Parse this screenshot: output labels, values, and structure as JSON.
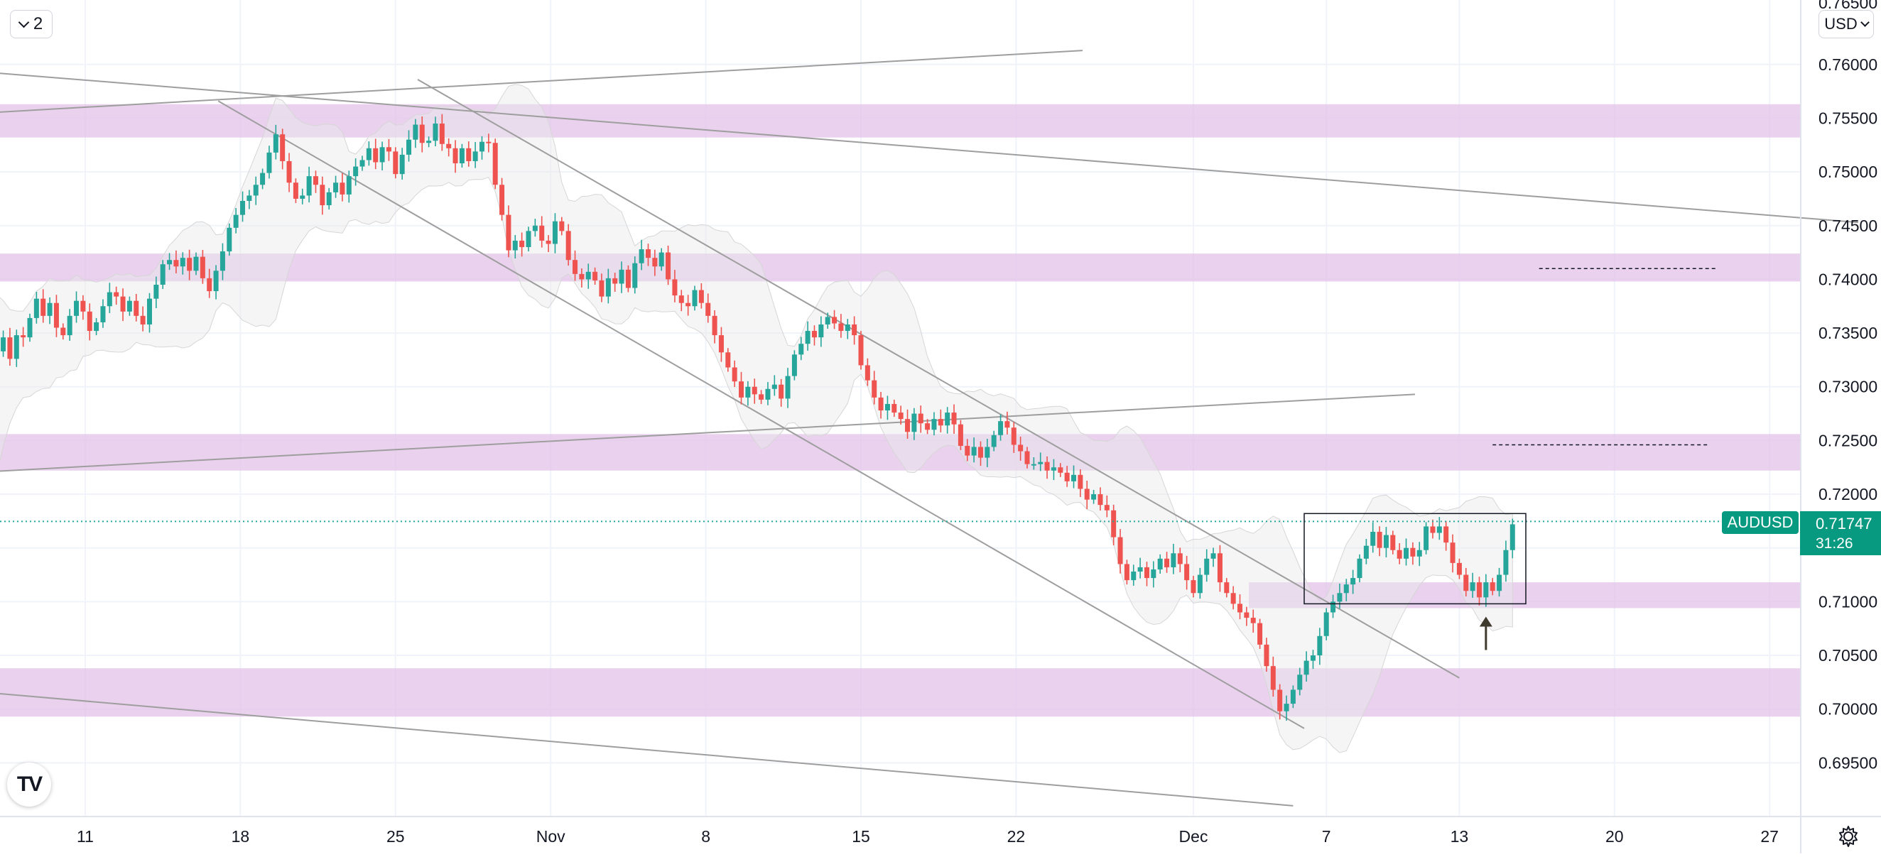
{
  "toolbar": {
    "collapse_label": "2",
    "currency_label": "USD"
  },
  "price_tag": {
    "symbol": "AUDUSD",
    "price": "0.71747",
    "countdown": "31:26"
  },
  "colors": {
    "up": "#26a69a",
    "down": "#ef5350",
    "zone": "#e1bee7",
    "price_tag": "#089981",
    "grid": "#f0f3fa",
    "trendline": "#9e9e9e"
  },
  "icons": {
    "logo": "tradingview-logo-icon",
    "settings": "gear-icon",
    "arrow": "arrow-up-icon"
  },
  "logo_text": "TV",
  "chart_data": {
    "type": "candlestick",
    "symbol": "AUDUSD",
    "ylim": [
      0.69,
      0.766
    ],
    "y_ticks": [
      "0.76000",
      "0.75500",
      "0.75000",
      "0.74500",
      "0.74000",
      "0.73500",
      "0.73000",
      "0.72500",
      "0.72000",
      "0.71000",
      "0.70500",
      "0.70000",
      "0.69500"
    ],
    "y_partial_tick": "0.76500",
    "x_ticks": [
      {
        "label": "11",
        "day": 11
      },
      {
        "label": "18",
        "day": 18
      },
      {
        "label": "25",
        "day": 25
      },
      {
        "label": "Nov",
        "day": 32
      },
      {
        "label": "8",
        "day": 39
      },
      {
        "label": "15",
        "day": 46
      },
      {
        "label": "22",
        "day": 53
      },
      {
        "label": "Dec",
        "day": 61
      },
      {
        "label": "7",
        "day": 67
      },
      {
        "label": "13",
        "day": 73
      },
      {
        "label": "20",
        "day": 80
      },
      {
        "label": "27",
        "day": 87
      }
    ],
    "grid": true,
    "current_price": 0.71747,
    "zones": [
      {
        "from": 0.7532,
        "to": 0.7563
      },
      {
        "from": 0.7398,
        "to": 0.7424
      },
      {
        "from": 0.7222,
        "to": 0.7256
      },
      {
        "from": 0.7094,
        "to": 0.7118,
        "start_day": 63.5
      },
      {
        "from": 0.6993,
        "to": 0.7038
      }
    ],
    "trendlines": [
      {
        "p1": [
          4,
          0.7552
        ],
        "p2": [
          56,
          0.7613
        ]
      },
      {
        "p1": [
          4,
          0.7597
        ],
        "p2": [
          91,
          0.7453
        ]
      },
      {
        "p1": [
          4,
          0.7218
        ],
        "p2": [
          71,
          0.7293
        ]
      },
      {
        "p1": [
          4,
          0.702
        ],
        "p2": [
          65.5,
          0.691
        ]
      },
      {
        "p1": [
          17,
          0.7566
        ],
        "p2": [
          66,
          0.6982
        ]
      },
      {
        "p1": [
          26,
          0.7586
        ],
        "p2": [
          73,
          0.7029
        ]
      }
    ],
    "dashed_levels": [
      {
        "price": 0.741,
        "from_day": 76.6,
        "to_day": 84.6
      },
      {
        "price": 0.7246,
        "from_day": 74.5,
        "to_day": 84.3
      }
    ],
    "consolidation_box": {
      "from_day": 66,
      "to_day": 76,
      "low": 0.7098,
      "high": 0.7182
    },
    "arrow": {
      "day": 74.2,
      "price_base": 0.7055,
      "price_tip": 0.7086
    },
    "series": [
      {
        "name": "AUDUSD",
        "points": [
          [
            4.0,
            0.7226
          ],
          [
            4.3,
            0.7256
          ],
          [
            4.6,
            0.7276
          ],
          [
            4.9,
            0.7295
          ],
          [
            5.2,
            0.7312
          ],
          [
            5.5,
            0.7301
          ],
          [
            5.8,
            0.7326
          ],
          [
            6.1,
            0.7333
          ],
          [
            6.4,
            0.7318
          ],
          [
            6.7,
            0.7343
          ],
          [
            7.0,
            0.7333
          ],
          [
            7.3,
            0.7346
          ],
          [
            7.6,
            0.7326
          ],
          [
            7.9,
            0.7348
          ],
          [
            8.2,
            0.7346
          ],
          [
            8.5,
            0.7364
          ],
          [
            8.8,
            0.7382
          ],
          [
            9.1,
            0.7366
          ],
          [
            9.4,
            0.7378
          ],
          [
            9.7,
            0.7355
          ],
          [
            10.0,
            0.7348
          ],
          [
            10.3,
            0.7366
          ],
          [
            10.6,
            0.738
          ],
          [
            10.9,
            0.737
          ],
          [
            11.2,
            0.7352
          ],
          [
            11.5,
            0.736
          ],
          [
            11.8,
            0.7375
          ],
          [
            12.1,
            0.7388
          ],
          [
            12.4,
            0.7384
          ],
          [
            12.7,
            0.737
          ],
          [
            13.0,
            0.738
          ],
          [
            13.3,
            0.7366
          ],
          [
            13.6,
            0.7358
          ],
          [
            13.9,
            0.7382
          ],
          [
            14.2,
            0.7395
          ],
          [
            14.5,
            0.7414
          ],
          [
            14.8,
            0.7418
          ],
          [
            15.1,
            0.7412
          ],
          [
            15.4,
            0.742
          ],
          [
            15.7,
            0.7408
          ],
          [
            16.0,
            0.7421
          ],
          [
            16.3,
            0.7401
          ],
          [
            16.6,
            0.7389
          ],
          [
            16.9,
            0.7408
          ],
          [
            17.2,
            0.7426
          ],
          [
            17.5,
            0.7448
          ],
          [
            17.8,
            0.746
          ],
          [
            18.1,
            0.7473
          ],
          [
            18.4,
            0.7478
          ],
          [
            18.7,
            0.7488
          ],
          [
            19.0,
            0.7499
          ],
          [
            19.3,
            0.7518
          ],
          [
            19.6,
            0.7535
          ],
          [
            19.9,
            0.751
          ],
          [
            20.2,
            0.749
          ],
          [
            20.5,
            0.7475
          ],
          [
            20.8,
            0.7478
          ],
          [
            21.1,
            0.7496
          ],
          [
            21.4,
            0.7488
          ],
          [
            21.7,
            0.7469
          ],
          [
            22.0,
            0.7481
          ],
          [
            22.3,
            0.749
          ],
          [
            22.6,
            0.7479
          ],
          [
            22.9,
            0.7496
          ],
          [
            23.2,
            0.7505
          ],
          [
            23.5,
            0.7511
          ],
          [
            23.8,
            0.7522
          ],
          [
            24.1,
            0.7509
          ],
          [
            24.4,
            0.7523
          ],
          [
            24.7,
            0.7519
          ],
          [
            25.0,
            0.7498
          ],
          [
            25.3,
            0.7516
          ],
          [
            25.6,
            0.753
          ],
          [
            25.9,
            0.7544
          ],
          [
            26.2,
            0.7527
          ],
          [
            26.5,
            0.7529
          ],
          [
            26.8,
            0.7545
          ],
          [
            27.1,
            0.7526
          ],
          [
            27.4,
            0.7522
          ],
          [
            27.7,
            0.7508
          ],
          [
            28.0,
            0.7522
          ],
          [
            28.3,
            0.751
          ],
          [
            28.6,
            0.7519
          ],
          [
            28.9,
            0.7528
          ],
          [
            29.2,
            0.7527
          ],
          [
            29.5,
            0.7488
          ],
          [
            29.8,
            0.746
          ],
          [
            30.1,
            0.7427
          ],
          [
            30.4,
            0.7436
          ],
          [
            30.7,
            0.743
          ],
          [
            31.0,
            0.7445
          ],
          [
            31.3,
            0.745
          ],
          [
            31.6,
            0.7436
          ],
          [
            31.9,
            0.7433
          ],
          [
            32.2,
            0.7454
          ],
          [
            32.5,
            0.7445
          ],
          [
            32.8,
            0.7418
          ],
          [
            33.1,
            0.7405
          ],
          [
            33.4,
            0.74
          ],
          [
            33.7,
            0.7407
          ],
          [
            34.0,
            0.7399
          ],
          [
            34.3,
            0.7384
          ],
          [
            34.6,
            0.7401
          ],
          [
            34.9,
            0.7396
          ],
          [
            35.2,
            0.7409
          ],
          [
            35.5,
            0.7392
          ],
          [
            35.8,
            0.7415
          ],
          [
            36.1,
            0.7428
          ],
          [
            36.4,
            0.742
          ],
          [
            36.7,
            0.7412
          ],
          [
            37.0,
            0.7425
          ],
          [
            37.3,
            0.74
          ],
          [
            37.6,
            0.7385
          ],
          [
            37.9,
            0.7378
          ],
          [
            38.2,
            0.7375
          ],
          [
            38.5,
            0.739
          ],
          [
            38.8,
            0.7378
          ],
          [
            39.1,
            0.7366
          ],
          [
            39.4,
            0.7348
          ],
          [
            39.7,
            0.7332
          ],
          [
            40.0,
            0.7318
          ],
          [
            40.3,
            0.7305
          ],
          [
            40.6,
            0.729
          ],
          [
            40.9,
            0.73
          ],
          [
            41.2,
            0.7293
          ],
          [
            41.5,
            0.7288
          ],
          [
            41.8,
            0.7298
          ],
          [
            42.1,
            0.7302
          ],
          [
            42.4,
            0.7289
          ],
          [
            42.7,
            0.731
          ],
          [
            43.0,
            0.733
          ],
          [
            43.3,
            0.734
          ],
          [
            43.6,
            0.7352
          ],
          [
            43.9,
            0.7346
          ],
          [
            44.2,
            0.7358
          ],
          [
            44.5,
            0.7365
          ],
          [
            44.8,
            0.7359
          ],
          [
            45.1,
            0.7352
          ],
          [
            45.4,
            0.7358
          ],
          [
            45.7,
            0.7348
          ],
          [
            46.0,
            0.732
          ],
          [
            46.3,
            0.7306
          ],
          [
            46.6,
            0.729
          ],
          [
            46.9,
            0.7278
          ],
          [
            47.2,
            0.7284
          ],
          [
            47.5,
            0.7276
          ],
          [
            47.8,
            0.727
          ],
          [
            48.1,
            0.7258
          ],
          [
            48.4,
            0.7275
          ],
          [
            48.7,
            0.7266
          ],
          [
            49.0,
            0.726
          ],
          [
            49.3,
            0.727
          ],
          [
            49.6,
            0.7264
          ],
          [
            49.9,
            0.7276
          ],
          [
            50.2,
            0.7265
          ],
          [
            50.5,
            0.7245
          ],
          [
            50.8,
            0.7236
          ],
          [
            51.1,
            0.7244
          ],
          [
            51.4,
            0.7234
          ],
          [
            51.7,
            0.7244
          ],
          [
            52.0,
            0.7255
          ],
          [
            52.3,
            0.7268
          ],
          [
            52.6,
            0.7262
          ],
          [
            52.9,
            0.7246
          ],
          [
            53.2,
            0.724
          ],
          [
            53.5,
            0.7228
          ],
          [
            53.8,
            0.7228
          ],
          [
            54.1,
            0.723
          ],
          [
            54.4,
            0.7222
          ],
          [
            54.7,
            0.7225
          ],
          [
            55.0,
            0.722
          ],
          [
            55.3,
            0.7212
          ],
          [
            55.6,
            0.7218
          ],
          [
            55.9,
            0.7205
          ],
          [
            56.2,
            0.7195
          ],
          [
            56.5,
            0.72
          ],
          [
            56.8,
            0.719
          ],
          [
            57.1,
            0.7185
          ],
          [
            57.4,
            0.716
          ],
          [
            57.7,
            0.7135
          ],
          [
            58.0,
            0.712
          ],
          [
            58.3,
            0.7128
          ],
          [
            58.6,
            0.7132
          ],
          [
            58.9,
            0.7122
          ],
          [
            59.2,
            0.713
          ],
          [
            59.5,
            0.714
          ],
          [
            59.8,
            0.7132
          ],
          [
            60.1,
            0.7145
          ],
          [
            60.4,
            0.7135
          ],
          [
            60.7,
            0.712
          ],
          [
            61.0,
            0.7108
          ],
          [
            61.3,
            0.7125
          ],
          [
            61.6,
            0.714
          ],
          [
            61.9,
            0.7145
          ],
          [
            62.2,
            0.7118
          ],
          [
            62.5,
            0.7108
          ],
          [
            62.8,
            0.7098
          ],
          [
            63.1,
            0.709
          ],
          [
            63.4,
            0.7085
          ],
          [
            63.7,
            0.708
          ],
          [
            64.0,
            0.706
          ],
          [
            64.3,
            0.704
          ],
          [
            64.6,
            0.7018
          ],
          [
            64.9,
            0.6998
          ],
          [
            65.2,
            0.7005
          ],
          [
            65.5,
            0.7018
          ],
          [
            65.8,
            0.7032
          ],
          [
            66.1,
            0.7045
          ],
          [
            66.4,
            0.705
          ],
          [
            66.7,
            0.7068
          ],
          [
            67.0,
            0.709
          ],
          [
            67.3,
            0.71
          ],
          [
            67.6,
            0.7108
          ],
          [
            67.9,
            0.7116
          ],
          [
            68.2,
            0.7122
          ],
          [
            68.5,
            0.714
          ],
          [
            68.8,
            0.7152
          ],
          [
            69.1,
            0.7165
          ],
          [
            69.4,
            0.715
          ],
          [
            69.7,
            0.7162
          ],
          [
            70.0,
            0.7148
          ],
          [
            70.3,
            0.714
          ],
          [
            70.6,
            0.715
          ],
          [
            70.9,
            0.7142
          ],
          [
            71.2,
            0.7148
          ],
          [
            71.5,
            0.717
          ],
          [
            71.8,
            0.7164
          ],
          [
            72.1,
            0.717
          ],
          [
            72.4,
            0.7155
          ],
          [
            72.7,
            0.7136
          ],
          [
            73.0,
            0.7125
          ],
          [
            73.3,
            0.711
          ],
          [
            73.6,
            0.7118
          ],
          [
            73.9,
            0.7104
          ],
          [
            74.2,
            0.7118
          ],
          [
            74.5,
            0.711
          ],
          [
            74.8,
            0.7125
          ],
          [
            75.1,
            0.7148
          ],
          [
            75.4,
            0.7172
          ]
        ]
      }
    ]
  }
}
